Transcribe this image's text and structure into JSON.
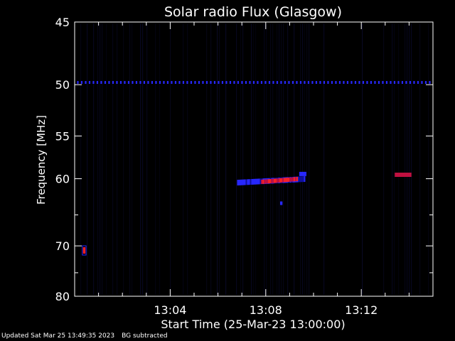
{
  "chart_data": {
    "type": "heatmap",
    "title": "Solar radio Flux (Glasgow)",
    "ylabel": "Frequency [MHz]",
    "xlabel": "Start Time (25-Mar-23 13:00:00)",
    "y_ticks": [
      45,
      50,
      55,
      60,
      70,
      80
    ],
    "x_ticks": [
      "13:04",
      "13:08",
      "13:12"
    ],
    "x_tick_minutes": [
      4,
      8,
      12
    ],
    "xlim_minutes": [
      0,
      15
    ],
    "ylim": [
      80,
      45
    ],
    "y_scale": "inverse",
    "colormap": [
      "#000000",
      "#1010a0",
      "#2828ff",
      "#c01040",
      "#ff2020"
    ],
    "features": [
      {
        "name": "band",
        "x_start_min": 0.1,
        "x_end_min": 14.9,
        "freq_mhz": 49.8,
        "intensity": 0.55
      },
      {
        "name": "burst",
        "x_start_min": 6.8,
        "x_end_min": 9.6,
        "freq_mhz": 60.5,
        "intensity": 0.7
      },
      {
        "name": "burst-core",
        "x_start_min": 7.8,
        "x_end_min": 9.3,
        "freq_mhz": 60.4,
        "intensity": 1.0
      },
      {
        "name": "burst-right",
        "x_start_min": 9.4,
        "x_end_min": 9.7,
        "freq_mhz": 59.4,
        "intensity": 0.6
      },
      {
        "name": "late-spot",
        "x_start_min": 13.4,
        "x_end_min": 14.1,
        "freq_mhz": 59.5,
        "intensity": 0.75
      },
      {
        "name": "early-spot",
        "x_start_min": 0.35,
        "x_end_min": 0.45,
        "freq_mhz": 70.8,
        "intensity": 1.0
      },
      {
        "name": "speck",
        "x_start_min": 8.6,
        "x_end_min": 8.7,
        "freq_mhz": 63.3,
        "intensity": 0.45
      }
    ]
  },
  "footer": {
    "updated": "Updated Sat Mar 25 13:49:35 2023",
    "bg": "BG subtracted"
  }
}
